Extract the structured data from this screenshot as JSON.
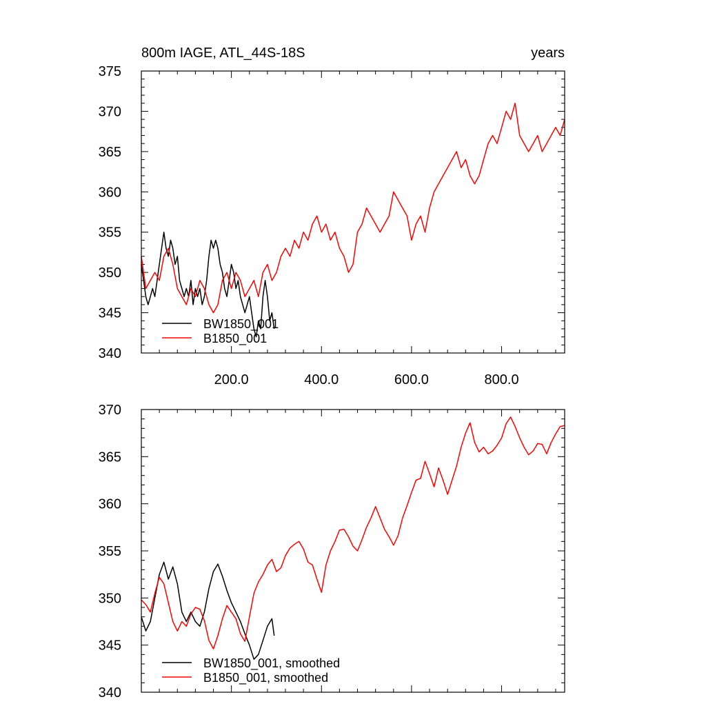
{
  "chart_data": [
    {
      "type": "line",
      "title": "800m IAGE, ATL_44S-18S",
      "units": "years",
      "xlim": [
        0,
        940
      ],
      "ylim": [
        340,
        375
      ],
      "yticks": [
        "340",
        "345",
        "350",
        "355",
        "360",
        "365",
        "370",
        "375"
      ],
      "xticks": [
        "200.0",
        "400.0",
        "600.0",
        "800.0"
      ],
      "series": [
        {
          "name": "BW1850_001",
          "color": "#000000",
          "x": [
            0,
            5,
            10,
            15,
            20,
            25,
            30,
            35,
            40,
            45,
            50,
            55,
            60,
            65,
            70,
            75,
            80,
            85,
            90,
            95,
            100,
            105,
            110,
            115,
            120,
            125,
            130,
            135,
            140,
            145,
            150,
            155,
            160,
            165,
            170,
            175,
            180,
            185,
            190,
            195,
            200,
            205,
            210,
            215,
            220,
            225,
            230,
            235,
            240,
            245,
            250,
            255,
            260,
            265,
            270,
            275,
            280,
            285,
            290,
            295
          ],
          "y": [
            351,
            349,
            347,
            346,
            347,
            348,
            347,
            349,
            351,
            353,
            355,
            353,
            352,
            354,
            353,
            351,
            352,
            349,
            348,
            347,
            348,
            347,
            349,
            346,
            348,
            347,
            348,
            346,
            347,
            349,
            352,
            354,
            353,
            354,
            353,
            351,
            350,
            348,
            347,
            349,
            351,
            350,
            348,
            349,
            347,
            346,
            345,
            346,
            347,
            345,
            343,
            342,
            344,
            343,
            347,
            349,
            347,
            344,
            345,
            343
          ]
        },
        {
          "name": "B1850_001",
          "color": "#ff0000",
          "x": [
            0,
            10,
            20,
            30,
            40,
            50,
            60,
            70,
            80,
            90,
            100,
            110,
            120,
            130,
            140,
            150,
            160,
            170,
            180,
            190,
            200,
            210,
            220,
            230,
            240,
            250,
            260,
            270,
            280,
            290,
            300,
            310,
            320,
            330,
            340,
            350,
            360,
            370,
            380,
            390,
            400,
            410,
            420,
            430,
            440,
            450,
            460,
            470,
            480,
            490,
            500,
            510,
            520,
            530,
            540,
            550,
            560,
            570,
            580,
            590,
            600,
            610,
            620,
            630,
            640,
            650,
            660,
            670,
            680,
            690,
            700,
            710,
            720,
            730,
            740,
            750,
            760,
            770,
            780,
            790,
            800,
            810,
            820,
            830,
            840,
            850,
            860,
            870,
            880,
            890,
            900,
            910,
            920,
            930,
            940
          ],
          "y": [
            352,
            348,
            349,
            350,
            349,
            352,
            353,
            351,
            348,
            347,
            346,
            348,
            347,
            349,
            348,
            346,
            345,
            346,
            349,
            350,
            348,
            350,
            349,
            347,
            348,
            349,
            347,
            350,
            351,
            349,
            350,
            352,
            353,
            352,
            354,
            353,
            355,
            354,
            356,
            357,
            355,
            356,
            354,
            355,
            353,
            352,
            350,
            351,
            355,
            356,
            358,
            357,
            356,
            355,
            356,
            357,
            360,
            359,
            358,
            357,
            354,
            356,
            357,
            355,
            358,
            360,
            361,
            362,
            363,
            364,
            365,
            363,
            364,
            362,
            361,
            362,
            364,
            366,
            367,
            366,
            368,
            370,
            369,
            371,
            367,
            366,
            365,
            366,
            367,
            365,
            366,
            367,
            368,
            367,
            369
          ]
        }
      ],
      "legend": "bottom-left"
    },
    {
      "type": "line",
      "xlim": [
        0,
        940
      ],
      "ylim": [
        340,
        370
      ],
      "yticks": [
        "340",
        "345",
        "350",
        "355",
        "360",
        "365",
        "370"
      ],
      "series": [
        {
          "name": "BW1850_001, smoothed",
          "color": "#000000",
          "x": [
            0,
            10,
            20,
            30,
            40,
            50,
            60,
            70,
            80,
            90,
            100,
            110,
            120,
            130,
            140,
            150,
            160,
            170,
            180,
            190,
            200,
            210,
            220,
            230,
            240,
            250,
            260,
            270,
            280,
            290,
            295
          ],
          "y": [
            348,
            346.5,
            347.5,
            350,
            352.5,
            353.8,
            352,
            353.3,
            351.5,
            348.5,
            347.5,
            348.5,
            347.5,
            347,
            348.5,
            351,
            352.8,
            353.6,
            352.3,
            350.8,
            349.5,
            348.5,
            347.5,
            346.2,
            345,
            343.5,
            344,
            345.5,
            347,
            347.8,
            346
          ]
        },
        {
          "name": "B1850_001, smoothed",
          "color": "#ff0000",
          "x": [
            0,
            10,
            20,
            30,
            40,
            50,
            60,
            70,
            80,
            90,
            100,
            110,
            120,
            130,
            140,
            150,
            160,
            170,
            180,
            190,
            200,
            210,
            220,
            230,
            240,
            250,
            260,
            270,
            280,
            290,
            300,
            310,
            320,
            330,
            340,
            350,
            360,
            370,
            380,
            390,
            400,
            410,
            420,
            430,
            440,
            450,
            460,
            470,
            480,
            490,
            500,
            510,
            520,
            530,
            540,
            550,
            560,
            570,
            580,
            590,
            600,
            610,
            620,
            630,
            640,
            650,
            660,
            670,
            680,
            690,
            700,
            710,
            720,
            730,
            740,
            750,
            760,
            770,
            780,
            790,
            800,
            810,
            820,
            830,
            840,
            850,
            860,
            870,
            880,
            890,
            900,
            910,
            920,
            930,
            940
          ],
          "y": [
            349.8,
            349.3,
            348.5,
            350.5,
            352.2,
            351.5,
            349.5,
            347.5,
            346.5,
            347.5,
            347,
            348.3,
            349,
            348.8,
            347.6,
            345.5,
            344.6,
            346,
            347.8,
            349.2,
            348.5,
            347.8,
            346.2,
            345.4,
            348,
            350.5,
            351.7,
            352.5,
            353.5,
            354.1,
            352.8,
            353.2,
            354.5,
            355.3,
            355.7,
            356,
            355.2,
            353.8,
            353.5,
            352,
            350.6,
            353.5,
            355,
            356,
            357.2,
            357.3,
            356.5,
            355.5,
            355,
            356.2,
            357.5,
            358.5,
            359.7,
            358.5,
            357.3,
            356.5,
            355.6,
            356.6,
            358.5,
            359.8,
            361.2,
            362.5,
            362.7,
            364.5,
            363.2,
            361.8,
            363.8,
            362.5,
            361,
            362.5,
            364,
            366,
            367.5,
            368.6,
            366.5,
            365.5,
            366,
            365.3,
            365.6,
            366.2,
            367,
            368.5,
            369.2,
            368.2,
            367,
            366,
            365.2,
            365.6,
            366.4,
            366.3,
            365.3,
            366.5,
            367.4,
            368.2,
            368.3
          ]
        }
      ],
      "legend": "bottom-left"
    }
  ]
}
